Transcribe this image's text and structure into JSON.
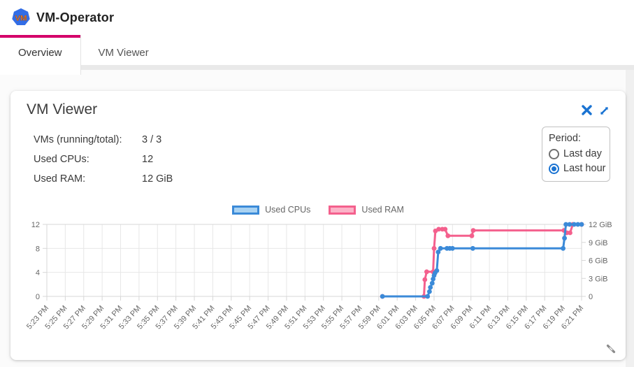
{
  "header": {
    "logo_text": "VM",
    "title": "VM-Operator"
  },
  "tabs": [
    {
      "label": "Overview",
      "active": true
    },
    {
      "label": "VM Viewer",
      "active": false
    }
  ],
  "card": {
    "title": "VM Viewer",
    "icons": {
      "close": "close-x",
      "expand": "diagonal-expand-arrows",
      "resize": "diagonal-resize-grip"
    },
    "stats": [
      {
        "label": "VMs (running/total):",
        "value": "3 / 3"
      },
      {
        "label": "Used CPUs:",
        "value": "12"
      },
      {
        "label": "Used RAM:",
        "value": "12 GiB"
      }
    ],
    "period": {
      "label": "Period:",
      "options": [
        {
          "label": "Last day",
          "selected": false
        },
        {
          "label": "Last hour",
          "selected": true
        }
      ]
    }
  },
  "colors": {
    "accent": "#1a73d2",
    "tab_indicator": "#d4006a",
    "cpu_line": "#3b8ad8",
    "cpu_fill": "#a9d2f2",
    "ram_line": "#f4608d",
    "ram_fill": "#fbb3c8",
    "grid": "#e7e7e7",
    "axis": "#d7d7d7"
  },
  "chart_data": {
    "type": "line",
    "title": "",
    "legend_position": "top",
    "grid": true,
    "x_ticks": [
      "5:23 PM",
      "5:25 PM",
      "5:27 PM",
      "5:29 PM",
      "5:31 PM",
      "5:33 PM",
      "5:35 PM",
      "5:37 PM",
      "5:39 PM",
      "5:41 PM",
      "5:43 PM",
      "5:45 PM",
      "5:47 PM",
      "5:49 PM",
      "5:51 PM",
      "5:53 PM",
      "5:55 PM",
      "5:57 PM",
      "5:59 PM",
      "6:01 PM",
      "6:03 PM",
      "6:05 PM",
      "6:07 PM",
      "6:09 PM",
      "6:11 PM",
      "6:13 PM",
      "6:15 PM",
      "6:17 PM",
      "6:19 PM",
      "6:21 PM"
    ],
    "x_range_minutes": [
      0,
      58
    ],
    "y_left": {
      "ticks": [
        0,
        4,
        8,
        12
      ],
      "labels": [
        "0",
        "4",
        "8",
        "12"
      ],
      "range": [
        0,
        12
      ]
    },
    "y_right": {
      "ticks": [
        0,
        3,
        6,
        9,
        12
      ],
      "labels": [
        "0",
        "3 GiB",
        "6 GiB",
        "9 GiB",
        "12 GiB"
      ],
      "range": [
        0,
        12
      ]
    },
    "series": [
      {
        "name": "Used CPUs",
        "axis": "left",
        "unit": "CPUs",
        "points": [
          [
            36.4,
            0
          ],
          [
            41.3,
            0
          ],
          [
            41.5,
            0.8
          ],
          [
            41.6,
            1.5
          ],
          [
            41.8,
            2.2
          ],
          [
            41.9,
            2.9
          ],
          [
            42.0,
            3.5
          ],
          [
            42.1,
            3.9
          ],
          [
            42.3,
            4.3
          ],
          [
            42.45,
            7.4
          ],
          [
            42.7,
            8
          ],
          [
            43.4,
            8
          ],
          [
            43.7,
            8
          ],
          [
            44.0,
            8
          ],
          [
            46.2,
            8
          ],
          [
            56.0,
            8
          ],
          [
            56.15,
            9.7
          ],
          [
            56.3,
            12
          ],
          [
            56.7,
            12
          ],
          [
            57.2,
            12
          ],
          [
            57.6,
            12
          ],
          [
            58.0,
            12
          ]
        ]
      },
      {
        "name": "Used RAM",
        "axis": "right",
        "unit": "GiB",
        "points": [
          [
            36.4,
            0
          ],
          [
            40.9,
            0
          ],
          [
            41.0,
            2.8
          ],
          [
            41.2,
            4.1
          ],
          [
            41.9,
            4.1
          ],
          [
            42.0,
            8.0
          ],
          [
            42.15,
            10.9
          ],
          [
            42.5,
            11.2
          ],
          [
            42.9,
            11.2
          ],
          [
            43.2,
            11.2
          ],
          [
            43.5,
            10.1
          ],
          [
            46.1,
            10.1
          ],
          [
            46.25,
            11.0
          ],
          [
            56.1,
            11.0
          ],
          [
            56.4,
            10.6
          ],
          [
            56.75,
            10.6
          ],
          [
            57.05,
            12.0
          ],
          [
            58.0,
            12.0
          ]
        ]
      }
    ]
  }
}
